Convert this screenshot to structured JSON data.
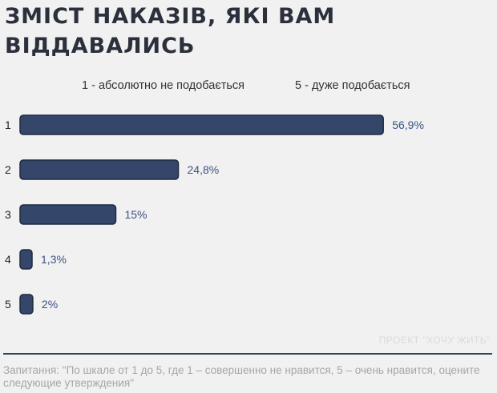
{
  "title_lines": [
    "ЗМІСТ НАКАЗІВ, ЯКІ ВАМ",
    "ВІДДАВАЛИСЬ"
  ],
  "scale_note": {
    "low": "1 - абсолютно не подобається",
    "high": "5 - дуже подобається"
  },
  "watermark": "ПРОЕКТ \"ХОЧУ ЖИТЬ\"",
  "footnote": "Запитання: \"По шкале от 1 до 5, где 1 – совершенно не нравится, 5 – очень нравится, оцените следующие утверждения\"",
  "colors": {
    "bar_fill": "#34476b",
    "bar_stroke": "#1e2a40",
    "value_label": "#3d5283"
  },
  "chart_data": {
    "type": "bar",
    "orientation": "horizontal",
    "categories": [
      "1",
      "2",
      "3",
      "4",
      "5"
    ],
    "values": [
      56.9,
      24.8,
      15,
      1.3,
      2
    ],
    "value_labels": [
      "56,9%",
      "24,8%",
      "15%",
      "1,3%",
      "2%"
    ],
    "xlim": [
      0,
      57
    ],
    "grid": false,
    "legend": "none"
  }
}
